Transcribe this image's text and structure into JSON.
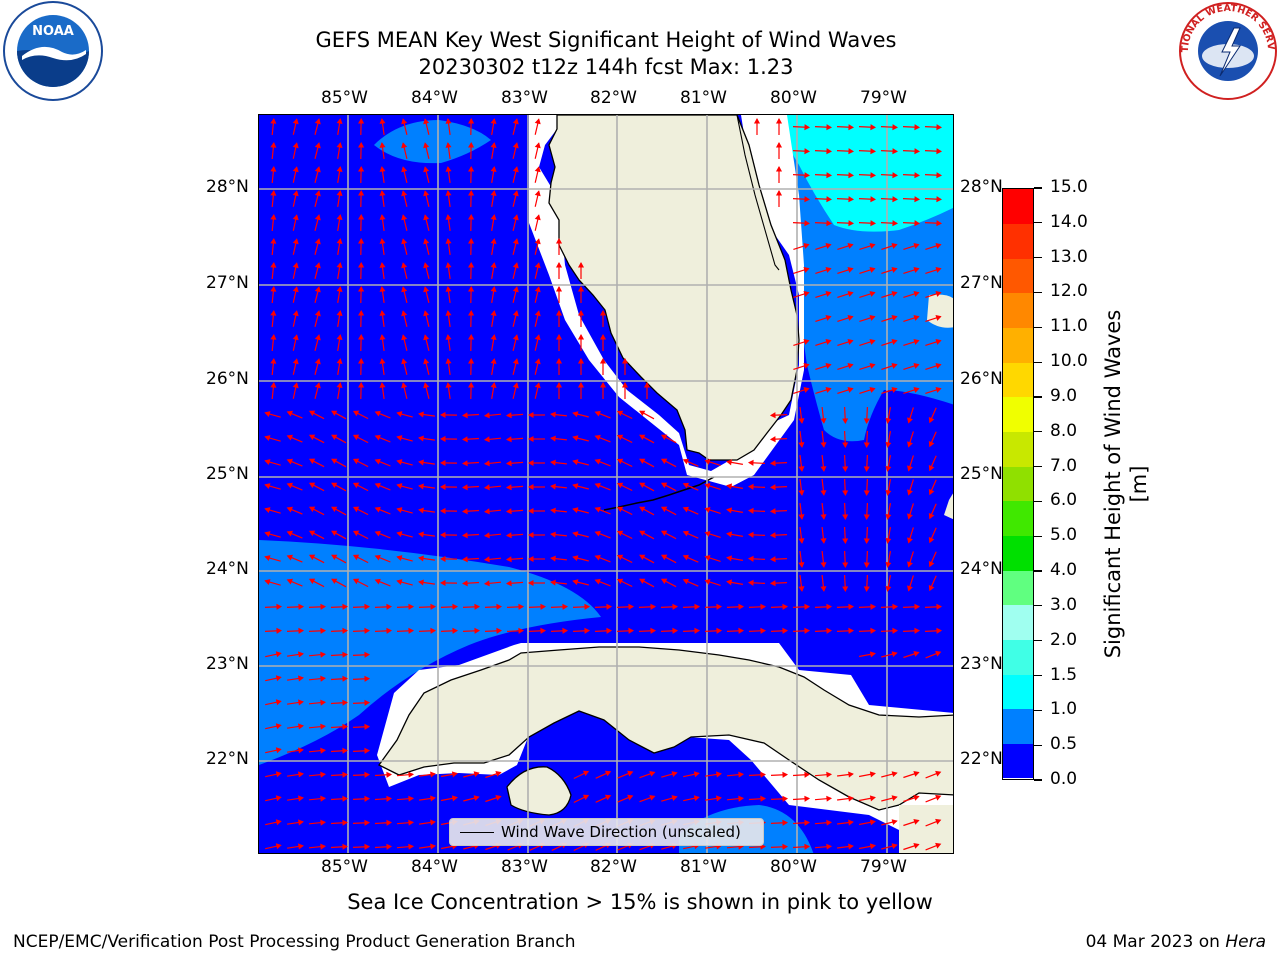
{
  "title": {
    "line1": "GEFS MEAN Key West Significant Height of Wind Waves",
    "line2": "20230302 t12z 144h fcst   Max: 1.23"
  },
  "logos": {
    "left": {
      "icon": "noaa-logo",
      "text": "NOAA"
    },
    "right": {
      "icon": "nws-logo",
      "text": "NATIONAL WEATHER SERVICE"
    }
  },
  "axes": {
    "longitudes": [
      "85°W",
      "84°W",
      "83°W",
      "82°W",
      "81°W",
      "80°W",
      "79°W"
    ],
    "latitudes": [
      "28°N",
      "27°N",
      "26°N",
      "25°N",
      "24°N",
      "23°N",
      "22°N"
    ]
  },
  "legend": {
    "label": "Wind Wave Direction (unscaled)"
  },
  "colorbar": {
    "title": "Significant Height of Wind Waves [m]",
    "ticks": [
      "0.0",
      "0.5",
      "1.0",
      "1.5",
      "2.0",
      "3.0",
      "4.0",
      "5.0",
      "6.0",
      "7.0",
      "8.0",
      "9.0",
      "10.0",
      "11.0",
      "12.0",
      "13.0",
      "14.0",
      "15.0"
    ],
    "colors": [
      "#0000ff",
      "#0080ff",
      "#00ffff",
      "#40ffe6",
      "#a0fff0",
      "#60ff80",
      "#00e000",
      "#40e800",
      "#90e000",
      "#c8e800",
      "#f0ff00",
      "#ffd800",
      "#ffb000",
      "#ff8800",
      "#ff5800",
      "#ff3000",
      "#ff0000"
    ]
  },
  "colors": {
    "land": "#efefdc",
    "mask": "#ffffff",
    "arrow": "#ff0000",
    "grid": "#b0b0b0"
  },
  "subtitle": "Sea Ice Concentration > 15% is shown in pink to yellow",
  "footer": {
    "left": "NCEP/EMC/Verification Post Processing Product Generation Branch",
    "right_prefix": "04 Mar 2023 on ",
    "right_host": "Hera"
  }
}
